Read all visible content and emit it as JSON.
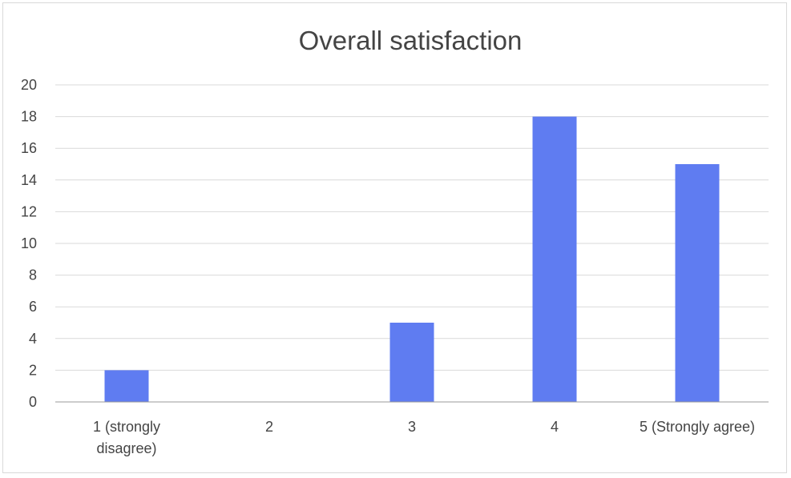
{
  "chart_data": {
    "type": "bar",
    "title": "Overall satisfaction",
    "categories": [
      "1 (strongly disagree)",
      "2",
      "3",
      "4",
      "5 (Strongly agree)"
    ],
    "category_lines": [
      [
        "1 (strongly",
        "disagree)"
      ],
      [
        "2"
      ],
      [
        "3"
      ],
      [
        "4"
      ],
      [
        "5 (Strongly agree)"
      ]
    ],
    "values": [
      2,
      0,
      5,
      18,
      15
    ],
    "ylim": [
      0,
      20
    ],
    "yticks": [
      0,
      2,
      4,
      6,
      8,
      10,
      12,
      14,
      16,
      18,
      20
    ],
    "xlabel": "",
    "ylabel": "",
    "grid": true,
    "legend": "none",
    "bar_color": "#5f7cf1"
  }
}
